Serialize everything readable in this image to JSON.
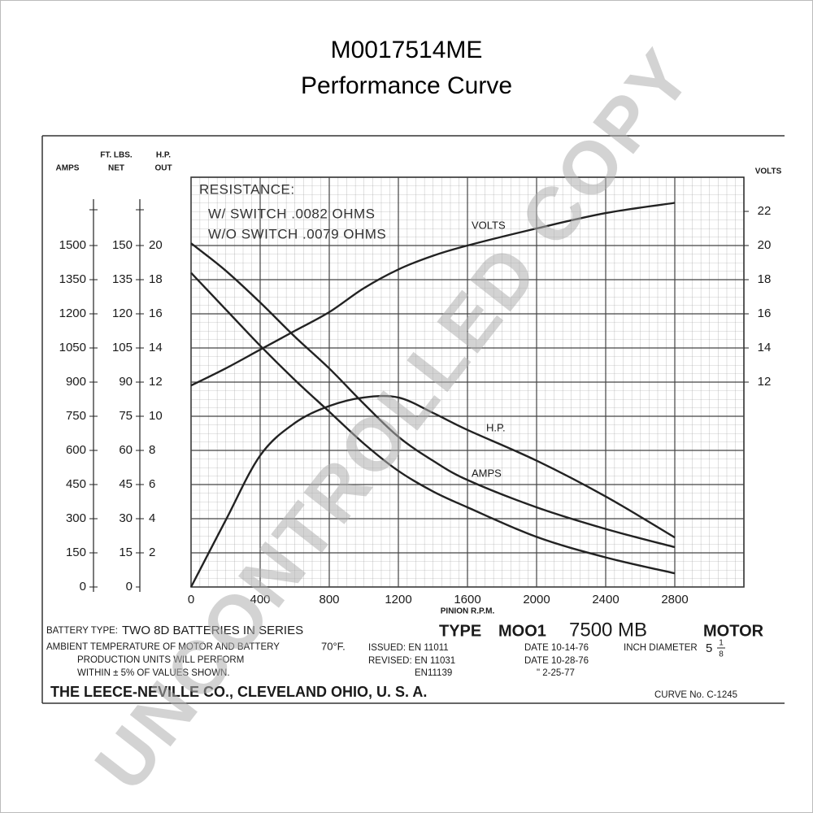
{
  "chart_data": {
    "type": "line",
    "title": "M0017514ME",
    "subtitle": "Performance Curve",
    "xlabel": "PINION R.P.M.",
    "ylabel": "AMPS",
    "ft_lbs_label": [
      "FT. LBS.",
      "NET"
    ],
    "hp_label": [
      "H.P.",
      "OUT"
    ],
    "y2label": "VOLTS",
    "x": [
      0,
      200,
      400,
      600,
      800,
      1000,
      1200,
      1400,
      1600,
      2000,
      2400,
      2800
    ],
    "xlim": [
      0,
      3200
    ],
    "xticks": [
      0,
      400,
      800,
      1200,
      1600,
      2000,
      2400,
      2800
    ],
    "ylim": [
      0,
      1800
    ],
    "yticks": [
      0,
      150,
      300,
      450,
      600,
      750,
      900,
      1050,
      1200,
      1350,
      1500
    ],
    "ft_lbs_lim": [
      0,
      180
    ],
    "ft_lbs_ticks": [
      0,
      15,
      30,
      45,
      60,
      75,
      90,
      105,
      120,
      135,
      150
    ],
    "hp_lim": [
      0,
      24
    ],
    "hp_ticks": [
      2,
      4,
      6,
      8,
      10,
      12,
      14,
      16,
      18,
      20
    ],
    "y2lim": [
      0,
      24
    ],
    "y2ticks": [
      12,
      14,
      16,
      18,
      20,
      22
    ],
    "grid": true,
    "series": [
      {
        "name": "VOLTS",
        "axis": "y2",
        "color": "#222222",
        "values": [
          11.8,
          12.8,
          13.9,
          15.0,
          16.1,
          17.5,
          18.6,
          19.4,
          20.0,
          21.0,
          21.9,
          22.5
        ]
      },
      {
        "name": "H.P.",
        "axis": "hp",
        "color": "#222222",
        "values": [
          0,
          3.9,
          7.7,
          9.6,
          10.6,
          11.1,
          11.1,
          10.2,
          9.2,
          7.4,
          5.3,
          2.9
        ]
      },
      {
        "name": "AMPS",
        "axis": "y",
        "color": "#222222",
        "values": [
          1510,
          1390,
          1250,
          1100,
          960,
          805,
          660,
          555,
          470,
          350,
          255,
          175
        ]
      },
      {
        "axis": "ft_lbs",
        "color": "#222222",
        "values": [
          138,
          122,
          106,
          91,
          77,
          63,
          51,
          42,
          35,
          22,
          13,
          6
        ]
      }
    ],
    "annotations": [
      "RESISTANCE:",
      "W/ SWITCH .0082 OHMS",
      "W/O SWITCH .0079 OHMS"
    ],
    "footer": {
      "battery_label": "BATTERY TYPE:",
      "battery_value": "TWO 8D BATTERIES IN SERIES",
      "ambient": "AMBIENT TEMPERATURE OF MOTOR AND BATTERY",
      "temperature": "70°F.",
      "production": "PRODUCTION UNITS WILL PERFORM",
      "tolerance": "WITHIN ± 5% OF VALUES SHOWN.",
      "issued": "ISSUED: EN 11011",
      "revised": "REVISED: EN 11031",
      "revised2": "EN11139",
      "type_label": "TYPE",
      "type_value": "MOO1",
      "model": "7500 MB",
      "motor": "MOTOR",
      "date1": "DATE 10-14-76",
      "date2": "DATE 10-28-76",
      "date3": "\"   2-25-77",
      "diameter_label": "INCH DIAMETER",
      "diameter_whole": "5",
      "diameter_num": "1",
      "diameter_den": "8",
      "company": "THE LEECE-NEVILLE CO., CLEVELAND OHIO, U. S. A.",
      "curve_no": "CURVE No. C-1245"
    },
    "watermark": "UNCONTROLLED COPY"
  }
}
